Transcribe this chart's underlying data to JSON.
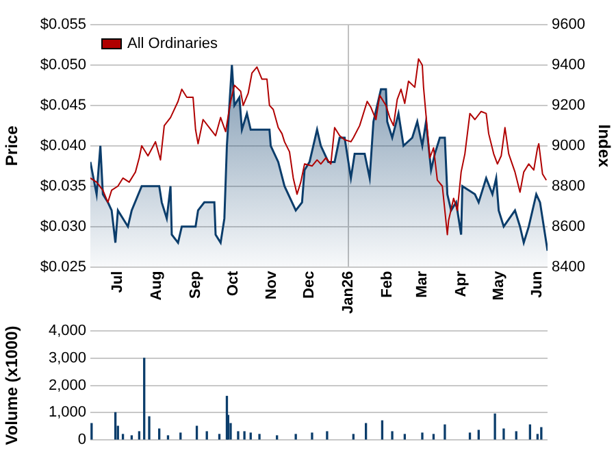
{
  "chart_data": [
    {
      "type": "area",
      "ylabel": "Price",
      "y2label": "Index",
      "xlim": [
        "2025-06-09",
        "2026-06-09"
      ],
      "xticks": [
        {
          "value": "2025-07-01",
          "label": "Jul"
        },
        {
          "value": "2025-08-01",
          "label": "Aug"
        },
        {
          "value": "2025-09-01",
          "label": "Sep"
        },
        {
          "value": "2025-10-01",
          "label": "Oct"
        },
        {
          "value": "2025-11-01",
          "label": "Nov"
        },
        {
          "value": "2025-12-01",
          "label": "Dec"
        },
        {
          "value": "2026-01-01",
          "label": "Jan26"
        },
        {
          "value": "2026-02-01",
          "label": "Feb"
        },
        {
          "value": "2026-03-01",
          "label": "Mar"
        },
        {
          "value": "2026-04-01",
          "label": "Apr"
        },
        {
          "value": "2026-05-01",
          "label": "May"
        },
        {
          "value": "2026-06-01",
          "label": "Jun"
        }
      ],
      "ylim": [
        0.025,
        0.055
      ],
      "yticks": [
        {
          "value": 0.025,
          "label": "$0.025"
        },
        {
          "value": 0.03,
          "label": "$0.030"
        },
        {
          "value": 0.035,
          "label": "$0.035"
        },
        {
          "value": 0.04,
          "label": "$0.040"
        },
        {
          "value": 0.045,
          "label": "$0.045"
        },
        {
          "value": 0.05,
          "label": "$0.050"
        },
        {
          "value": 0.055,
          "label": "$0.055"
        }
      ],
      "y2lim": [
        8400,
        9600
      ],
      "y2ticks": [
        8400,
        8600,
        8800,
        9000,
        9200,
        9400,
        9600
      ],
      "grid": "y",
      "legend": "top left",
      "ref_lines": [
        {
          "axis": "x",
          "value": "2026-01-01",
          "color": "#c0c0c0"
        }
      ],
      "series": [
        {
          "color": "#0b3d6b",
          "x": [
            "2025-06-09",
            "2025-06-14",
            "2025-06-17",
            "2025-06-19",
            "2025-06-23",
            "2025-06-26",
            "2025-06-29",
            "2025-07-01",
            "2025-07-09",
            "2025-07-12",
            "2025-07-20",
            "2025-08-03",
            "2025-08-05",
            "2025-08-09",
            "2025-08-12",
            "2025-08-13",
            "2025-08-18",
            "2025-08-21",
            "2025-09-01",
            "2025-09-03",
            "2025-09-08",
            "2025-09-16",
            "2025-09-17",
            "2025-09-21",
            "2025-09-24",
            "2025-09-26",
            "2025-09-30",
            "2025-10-02",
            "2025-10-06",
            "2025-10-08",
            "2025-10-12",
            "2025-10-15",
            "2025-10-30",
            "2025-10-31",
            "2025-11-06",
            "2025-11-11",
            "2025-11-20",
            "2025-11-25",
            "2025-11-27",
            "2025-12-01",
            "2025-12-07",
            "2025-12-10",
            "2025-12-16",
            "2025-12-21",
            "2025-12-25",
            "2025-12-29",
            "2026-01-03",
            "2026-01-06",
            "2026-01-14",
            "2026-01-18",
            "2026-01-21",
            "2026-01-27",
            "2026-01-31",
            "2026-02-01",
            "2026-02-05",
            "2026-02-10",
            "2026-02-14",
            "2026-02-21",
            "2026-02-25",
            "2026-03-01",
            "2026-03-04",
            "2026-03-08",
            "2026-03-11",
            "2026-03-15",
            "2026-03-19",
            "2026-03-21",
            "2026-03-24",
            "2026-03-28",
            "2026-04-01",
            "2026-04-02",
            "2026-04-12",
            "2026-04-15",
            "2026-04-21",
            "2026-04-26",
            "2026-04-29",
            "2026-05-01",
            "2026-05-05",
            "2026-05-14",
            "2026-05-18",
            "2026-05-21",
            "2026-05-25",
            "2026-05-31",
            "2026-06-03",
            "2026-06-09"
          ],
          "values": [
            0.038,
            0.034,
            0.04,
            0.034,
            0.033,
            0.032,
            0.028,
            0.032,
            0.03,
            0.032,
            0.035,
            0.035,
            0.033,
            0.031,
            0.035,
            0.029,
            0.028,
            0.03,
            0.03,
            0.032,
            0.033,
            0.033,
            0.029,
            0.028,
            0.031,
            0.04,
            0.05,
            0.045,
            0.046,
            0.042,
            0.044,
            0.042,
            0.042,
            0.04,
            0.038,
            0.035,
            0.032,
            0.033,
            0.037,
            0.038,
            0.042,
            0.04,
            0.038,
            0.038,
            0.041,
            0.041,
            0.036,
            0.039,
            0.039,
            0.036,
            0.043,
            0.047,
            0.047,
            0.043,
            0.041,
            0.044,
            0.04,
            0.041,
            0.043,
            0.04,
            0.043,
            0.037,
            0.039,
            0.041,
            0.041,
            0.034,
            0.032,
            0.033,
            0.029,
            0.035,
            0.034,
            0.033,
            0.036,
            0.034,
            0.036,
            0.032,
            0.03,
            0.032,
            0.03,
            0.028,
            0.03,
            0.034,
            0.033,
            0.027
          ]
        },
        {
          "type": "line",
          "name": "All Ordinaries",
          "color": "#b00000",
          "axis": "y2",
          "x": [
            "2025-06-09",
            "2025-06-14",
            "2025-06-19",
            "2025-06-23",
            "2025-06-26",
            "2025-07-01",
            "2025-07-05",
            "2025-07-10",
            "2025-07-15",
            "2025-07-18",
            "2025-07-20",
            "2025-07-25",
            "2025-07-31",
            "2025-08-04",
            "2025-08-07",
            "2025-08-12",
            "2025-08-18",
            "2025-08-21",
            "2025-08-25",
            "2025-08-30",
            "2025-09-01",
            "2025-09-03",
            "2025-09-07",
            "2025-09-12",
            "2025-09-17",
            "2025-09-21",
            "2025-09-25",
            "2025-09-29",
            "2025-10-02",
            "2025-10-07",
            "2025-10-09",
            "2025-10-13",
            "2025-10-16",
            "2025-10-20",
            "2025-10-24",
            "2025-10-28",
            "2025-10-30",
            "2025-11-02",
            "2025-11-06",
            "2025-11-09",
            "2025-11-11",
            "2025-11-15",
            "2025-11-18",
            "2025-11-21",
            "2025-11-24",
            "2025-11-27",
            "2025-12-03",
            "2025-12-07",
            "2025-12-10",
            "2025-12-14",
            "2025-12-18",
            "2025-12-21",
            "2025-12-25",
            "2025-12-29",
            "2026-01-03",
            "2026-01-05",
            "2026-01-10",
            "2026-01-16",
            "2026-01-19",
            "2026-01-23",
            "2026-01-26",
            "2026-01-31",
            "2026-02-03",
            "2026-02-06",
            "2026-02-09",
            "2026-02-12",
            "2026-02-15",
            "2026-02-18",
            "2026-02-23",
            "2026-02-26",
            "2026-03-01",
            "2026-03-02",
            "2026-03-04",
            "2026-03-07",
            "2026-03-10",
            "2026-03-13",
            "2026-03-17",
            "2026-03-21",
            "2026-03-22",
            "2026-03-26",
            "2026-03-29",
            "2026-04-01",
            "2026-04-04",
            "2026-04-08",
            "2026-04-12",
            "2026-04-17",
            "2026-04-21",
            "2026-04-23",
            "2026-04-27",
            "2026-04-30",
            "2026-05-03",
            "2026-05-06",
            "2026-05-09",
            "2026-05-14",
            "2026-05-18",
            "2026-05-21",
            "2026-05-25",
            "2026-05-29",
            "2026-06-01",
            "2026-06-02",
            "2026-06-05",
            "2026-06-08"
          ],
          "values": [
            8840,
            8820,
            8780,
            8720,
            8780,
            8800,
            8840,
            8820,
            8870,
            8940,
            9000,
            8950,
            9020,
            8930,
            9100,
            9140,
            9220,
            9280,
            9240,
            9240,
            9080,
            9010,
            9130,
            9090,
            9050,
            9140,
            9070,
            9220,
            9300,
            9270,
            9200,
            9260,
            9360,
            9390,
            9330,
            9330,
            9200,
            9180,
            9090,
            9060,
            9020,
            8970,
            8840,
            8760,
            8820,
            8910,
            8900,
            8930,
            8910,
            8940,
            8910,
            9090,
            9050,
            9030,
            9020,
            9040,
            9100,
            9220,
            9190,
            9130,
            9250,
            9200,
            9140,
            9100,
            9230,
            9280,
            9210,
            9320,
            9290,
            9430,
            9400,
            9290,
            9150,
            8940,
            8990,
            8830,
            8800,
            8560,
            8630,
            8740,
            8680,
            8870,
            8960,
            9160,
            9130,
            9170,
            9160,
            9060,
            8960,
            8910,
            8950,
            9090,
            8960,
            8870,
            8770,
            8870,
            8910,
            8880,
            8990,
            9010,
            8860,
            8830
          ]
        }
      ]
    },
    {
      "type": "bar",
      "ylabel": "Volume (x1000)",
      "xlim": [
        "2025-06-09",
        "2026-06-09"
      ],
      "ylim": [
        0,
        4000
      ],
      "yticks": [
        {
          "value": 0,
          "label": "0"
        },
        {
          "value": 1000,
          "label": "1,000"
        },
        {
          "value": 2000,
          "label": "2,000"
        },
        {
          "value": 3000,
          "label": "3,000"
        },
        {
          "value": 4000,
          "label": "4,000"
        }
      ],
      "grid": "y",
      "tick_labels": "y",
      "series": [
        {
          "color": "#0b3d6b",
          "x": [
            "2025-06-10",
            "2025-06-29",
            "2025-07-01",
            "2025-07-05",
            "2025-07-12",
            "2025-07-18",
            "2025-07-22",
            "2025-07-26",
            "2025-08-03",
            "2025-08-10",
            "2025-08-20",
            "2025-09-02",
            "2025-09-10",
            "2025-09-20",
            "2025-09-26",
            "2025-09-27",
            "2025-09-29",
            "2025-10-05",
            "2025-10-10",
            "2025-10-15",
            "2025-10-22",
            "2025-11-05",
            "2025-11-20",
            "2025-12-03",
            "2025-12-15",
            "2026-01-05",
            "2026-01-15",
            "2026-01-28",
            "2026-02-05",
            "2026-02-15",
            "2026-03-01",
            "2026-03-10",
            "2026-03-19",
            "2026-04-08",
            "2026-04-15",
            "2026-04-28",
            "2026-05-05",
            "2026-05-15",
            "2026-05-26",
            "2026-06-01",
            "2026-06-04"
          ],
          "values": [
            600,
            1000,
            500,
            200,
            150,
            300,
            3000,
            850,
            400,
            150,
            250,
            500,
            300,
            200,
            1600,
            900,
            600,
            300,
            300,
            250,
            200,
            150,
            200,
            250,
            300,
            200,
            600,
            700,
            300,
            200,
            250,
            200,
            550,
            250,
            350,
            950,
            400,
            300,
            550,
            200,
            450
          ]
        }
      ]
    }
  ]
}
